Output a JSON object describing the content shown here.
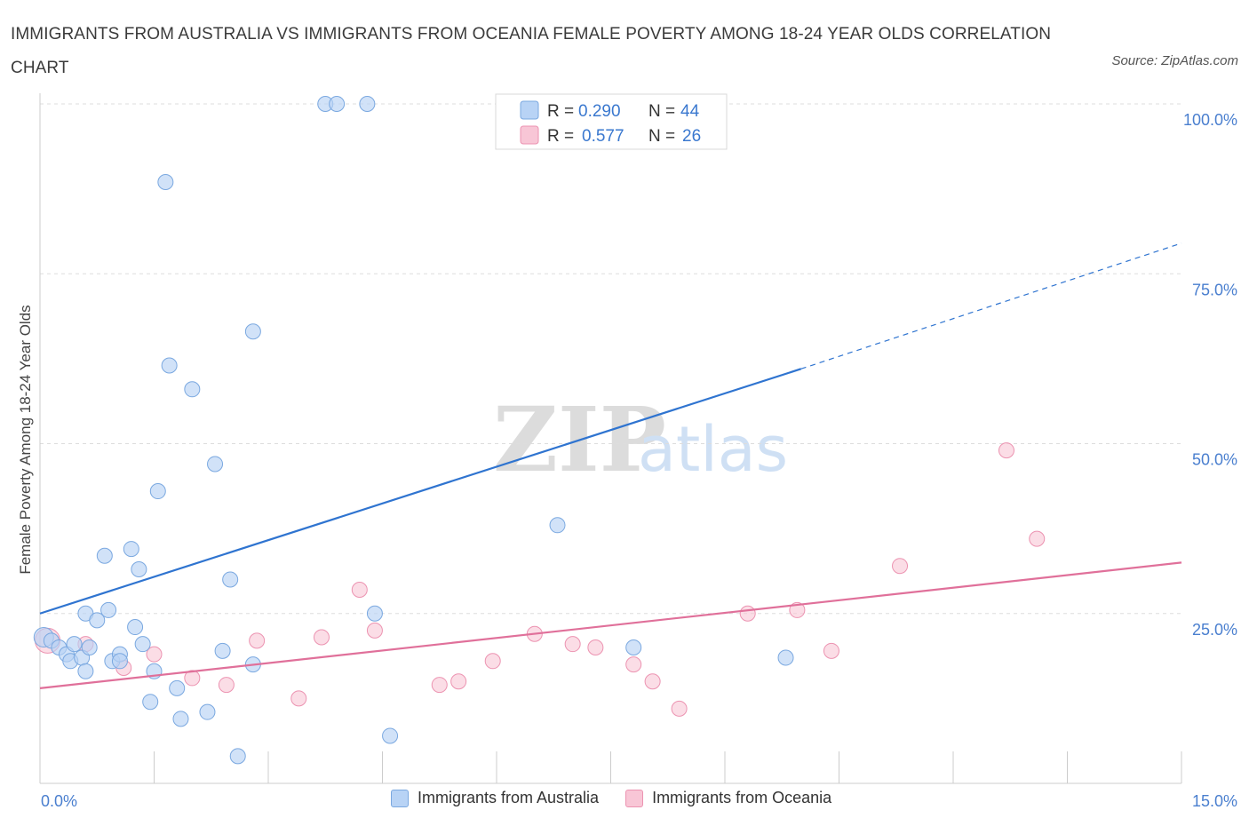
{
  "title": "IMMIGRANTS FROM AUSTRALIA VS IMMIGRANTS FROM OCEANIA FEMALE POVERTY AMONG 18-24 YEAR OLDS CORRELATION CHART",
  "source": "Source: ZipAtlas.com",
  "watermark": {
    "zip": "ZIP",
    "atlas": "atlas"
  },
  "legend": {
    "rows": [
      {
        "r_label": "R = ",
        "r_value": "0.290",
        "n_label": "N = ",
        "n_value": "44"
      },
      {
        "r_label": "R = ",
        "r_value": "0.577",
        "n_label": "N = ",
        "n_value": "26"
      }
    ],
    "bottom": [
      "Immigrants from Australia",
      "Immigrants from Oceania"
    ]
  },
  "colors": {
    "blue_fill": "#b8d3f5",
    "blue_stroke": "#7aa8e0",
    "blue_line": "#2f74d0",
    "pink_fill": "#f8c6d6",
    "pink_stroke": "#ec93b1",
    "pink_line": "#e0709a",
    "tick_text": "#4a7fcf"
  },
  "chart_data": {
    "type": "scatter",
    "title": "IMMIGRANTS FROM AUSTRALIA VS IMMIGRANTS FROM OCEANIA FEMALE POVERTY AMONG 18-24 YEAR OLDS CORRELATION CHART",
    "xlabel": "",
    "ylabel": "Female Poverty Among 18-24 Year Olds",
    "xlim": [
      0,
      15
    ],
    "ylim": [
      0,
      100
    ],
    "x_tick_labels": [
      "0.0%",
      "15.0%"
    ],
    "y_tick_values": [
      25,
      50,
      75,
      100
    ],
    "y_tick_labels": [
      "25.0%",
      "50.0%",
      "75.0%",
      "100.0%"
    ],
    "grid": true,
    "legend_position": "top-center",
    "series": [
      {
        "name": "Immigrants from Australia",
        "r": 0.29,
        "n": 44,
        "trend": {
          "x": [
            0,
            10.0
          ],
          "y": [
            25.0,
            61.0
          ],
          "dashed_to": [
            15.0,
            79.5
          ]
        },
        "points": [
          [
            0.05,
            21.5
          ],
          [
            0.15,
            21.0
          ],
          [
            0.25,
            20.0
          ],
          [
            0.35,
            19.0
          ],
          [
            0.4,
            18.0
          ],
          [
            0.55,
            18.5
          ],
          [
            0.6,
            16.5
          ],
          [
            0.45,
            20.5
          ],
          [
            0.65,
            20.0
          ],
          [
            0.6,
            25.0
          ],
          [
            0.75,
            24.0
          ],
          [
            0.9,
            25.5
          ],
          [
            0.85,
            33.5
          ],
          [
            0.95,
            18.0
          ],
          [
            1.05,
            19.0
          ],
          [
            1.05,
            18.0
          ],
          [
            1.2,
            34.5
          ],
          [
            1.25,
            23.0
          ],
          [
            1.3,
            31.5
          ],
          [
            1.35,
            20.5
          ],
          [
            1.45,
            12.0
          ],
          [
            1.5,
            16.5
          ],
          [
            1.55,
            43.0
          ],
          [
            1.65,
            88.5
          ],
          [
            1.7,
            61.5
          ],
          [
            1.8,
            14.0
          ],
          [
            1.85,
            9.5
          ],
          [
            2.0,
            58.0
          ],
          [
            2.2,
            10.5
          ],
          [
            2.3,
            47.0
          ],
          [
            2.4,
            19.5
          ],
          [
            2.5,
            30.0
          ],
          [
            2.6,
            4.0
          ],
          [
            2.8,
            17.5
          ],
          [
            2.8,
            66.5
          ],
          [
            3.75,
            100.0
          ],
          [
            3.9,
            100.0
          ],
          [
            4.3,
            100.0
          ],
          [
            4.4,
            25.0
          ],
          [
            4.6,
            7.0
          ],
          [
            6.6,
            100.0
          ],
          [
            6.8,
            38.0
          ],
          [
            7.8,
            20.0
          ],
          [
            9.8,
            18.5
          ]
        ]
      },
      {
        "name": "Immigrants from Oceania",
        "r": 0.577,
        "n": 26,
        "trend": {
          "x": [
            0,
            15.0
          ],
          "y": [
            14.0,
            32.5
          ]
        },
        "points": [
          [
            0.1,
            21.0
          ],
          [
            0.6,
            20.5
          ],
          [
            1.1,
            17.0
          ],
          [
            1.5,
            19.0
          ],
          [
            2.0,
            15.5
          ],
          [
            2.45,
            14.5
          ],
          [
            2.85,
            21.0
          ],
          [
            3.4,
            12.5
          ],
          [
            3.7,
            21.5
          ],
          [
            4.2,
            28.5
          ],
          [
            4.4,
            22.5
          ],
          [
            5.25,
            14.5
          ],
          [
            5.5,
            15.0
          ],
          [
            5.95,
            18.0
          ],
          [
            6.5,
            22.0
          ],
          [
            7.0,
            20.5
          ],
          [
            7.3,
            20.0
          ],
          [
            7.8,
            17.5
          ],
          [
            8.05,
            15.0
          ],
          [
            8.4,
            11.0
          ],
          [
            9.3,
            25.0
          ],
          [
            9.95,
            25.5
          ],
          [
            10.4,
            19.5
          ],
          [
            11.3,
            32.0
          ],
          [
            12.7,
            49.0
          ],
          [
            13.1,
            36.0
          ]
        ]
      }
    ]
  }
}
